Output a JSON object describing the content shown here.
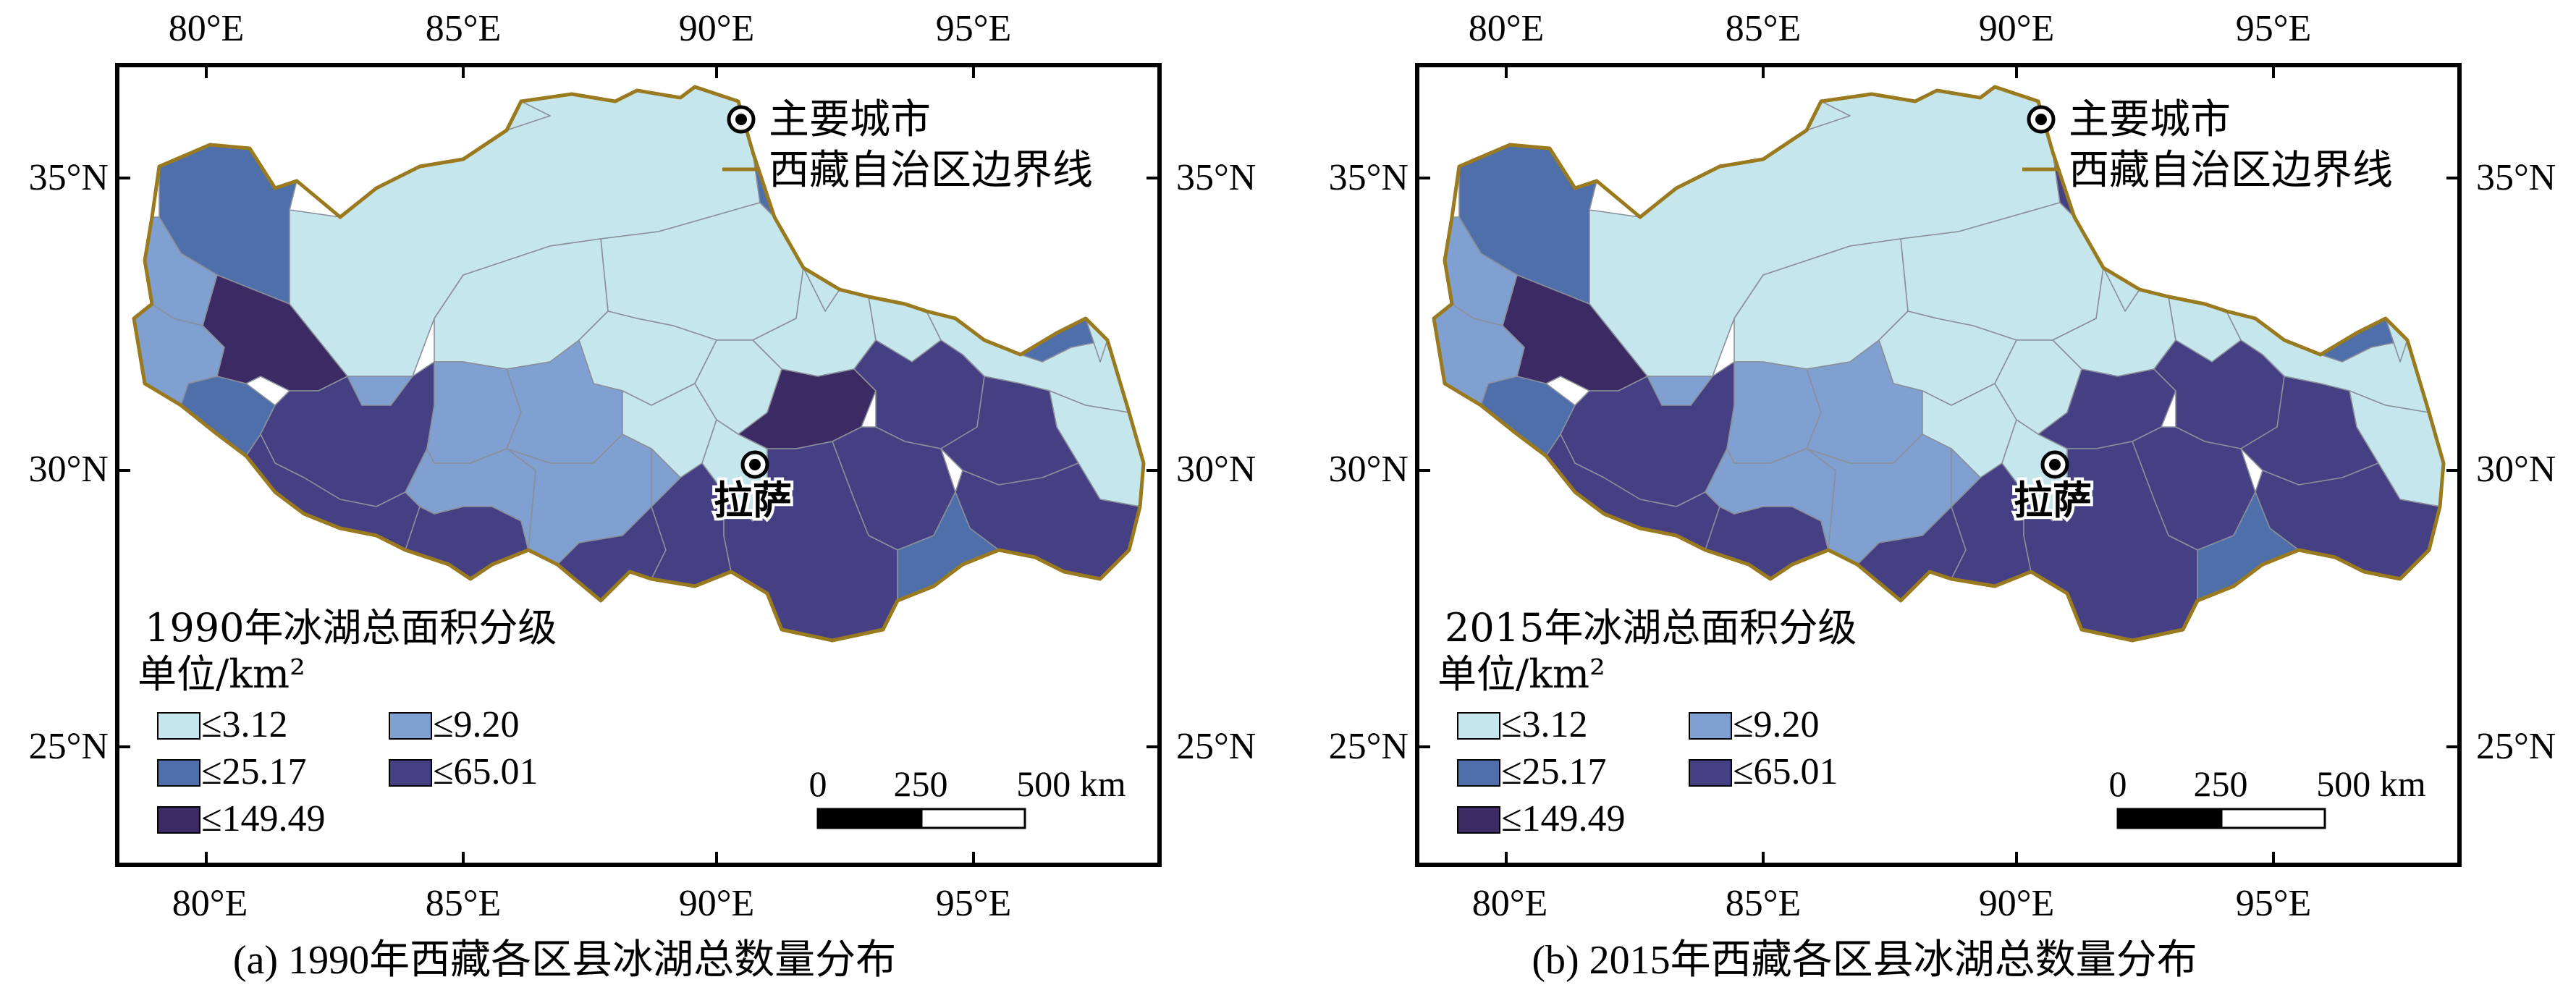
{
  "colors": {
    "class1": "#c5e6ec",
    "class2": "#7fa0d0",
    "class3": "#4f6fab",
    "class4": "#453f84",
    "class5": "#3b2a63",
    "boundary": "#9a7a1e",
    "district_line": "#8a8f99"
  },
  "axes": {
    "lon_labels": [
      "80°E",
      "85°E",
      "90°E",
      "95°E"
    ],
    "lat_labels": [
      "35°N",
      "30°N",
      "25°N"
    ]
  },
  "top_legend": {
    "city_label": "主要城市",
    "boundary_label": "西藏自治区边界线"
  },
  "city": {
    "name": "拉萨",
    "icon": "city-point-icon"
  },
  "legend": {
    "unit": "单位/km²",
    "classes": [
      "≤3.12",
      "≤9.20",
      "≤25.17",
      "≤65.01",
      "≤149.49"
    ]
  },
  "scale_bar": {
    "labels": [
      "0",
      "250",
      "500 km"
    ]
  },
  "panels": [
    {
      "legend_title": "1990年冰湖总面积分级",
      "caption": "(a) 1990年西藏各区县冰湖总数量分布",
      "district_classes": [
        1,
        1,
        1,
        1,
        1,
        1,
        1,
        1,
        3,
        3,
        2,
        2,
        5,
        4,
        4,
        2,
        2,
        4,
        2,
        2,
        1,
        1,
        4,
        4,
        2,
        1,
        5,
        4,
        4,
        4,
        4,
        4,
        3,
        3,
        3,
        2,
        1,
        1,
        1,
        1
      ]
    },
    {
      "legend_title": "2015年冰湖总面积分级",
      "caption": "(b) 2015年西藏各区县冰湖总数量分布",
      "district_classes": [
        1,
        1,
        1,
        1,
        1,
        1,
        1,
        1,
        3,
        3,
        2,
        2,
        5,
        4,
        4,
        2,
        2,
        4,
        2,
        2,
        1,
        1,
        4,
        4,
        2,
        1,
        4,
        4,
        4,
        4,
        4,
        4,
        3,
        3,
        4,
        2,
        1,
        1,
        1,
        1
      ]
    }
  ]
}
